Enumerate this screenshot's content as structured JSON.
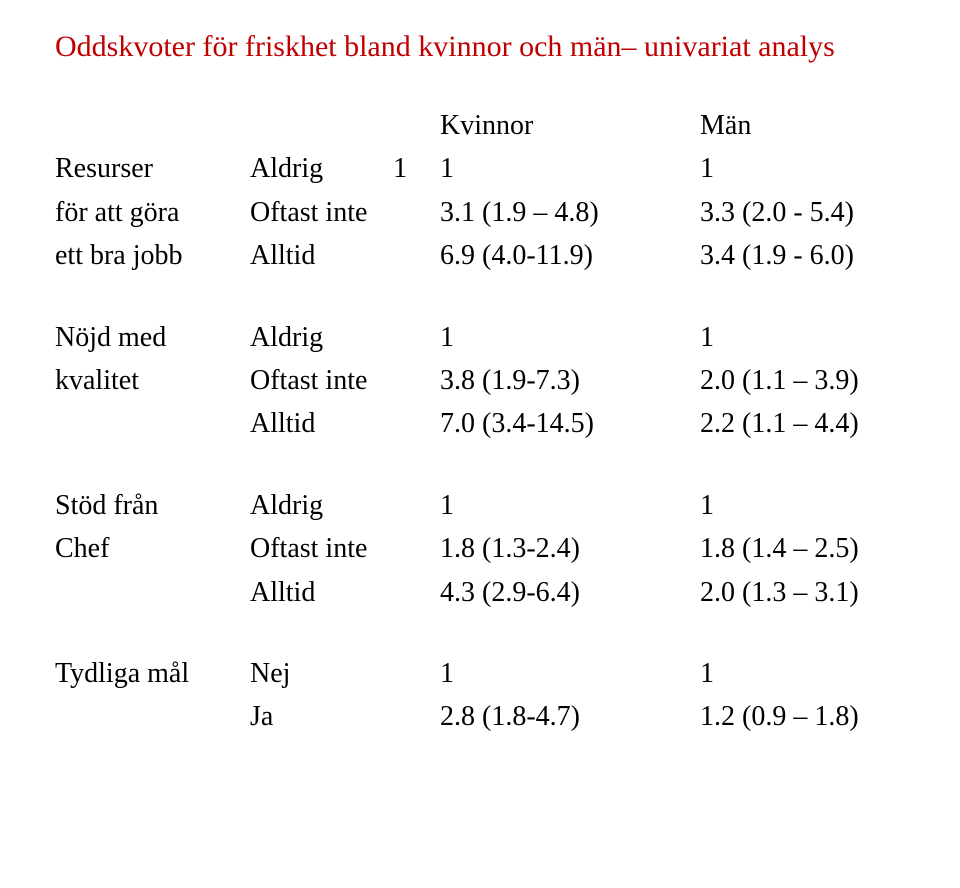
{
  "title": "Oddskvoter för friskhet bland kvinnor och män– univariat analys",
  "title_color": "#c00000",
  "header": {
    "kvinnor": "Kvinnor",
    "man": "Män"
  },
  "groups": [
    {
      "label_lines": [
        "Resurser",
        "för att göra",
        "ett  bra jobb"
      ],
      "rows": [
        {
          "level": "Aldrig",
          "kvinnor": "1",
          "kvinnor_prefix": "1",
          "man": "1"
        },
        {
          "level": "Oftast inte",
          "kvinnor": "3.1 (1.9 – 4.8)",
          "man": "3.3 (2.0 - 5.4)"
        },
        {
          "level": "Alltid",
          "kvinnor": "6.9 (4.0-11.9)",
          "man": "3.4 (1.9 - 6.0)"
        }
      ]
    },
    {
      "label_lines": [
        "Nöjd med",
        "kvalitet",
        ""
      ],
      "rows": [
        {
          "level": "Aldrig",
          "kvinnor": "1",
          "man": "1"
        },
        {
          "level": "Oftast inte",
          "kvinnor": "3.8 (1.9-7.3)",
          "man": "2.0 (1.1 – 3.9)"
        },
        {
          "level": "Alltid",
          "kvinnor": "7.0 (3.4-14.5)",
          "man": "2.2 (1.1 – 4.4)"
        }
      ]
    },
    {
      "label_lines": [
        "Stöd från",
        "Chef",
        ""
      ],
      "rows": [
        {
          "level": "Aldrig",
          "kvinnor": "1",
          "man": "1"
        },
        {
          "level": "Oftast inte",
          "kvinnor": "1.8 (1.3-2.4)",
          "man": "1.8 (1.4 – 2.5)"
        },
        {
          "level": "Alltid",
          "kvinnor": "4.3 (2.9-6.4)",
          "man": "2.0 (1.3 – 3.1)"
        }
      ]
    },
    {
      "label_lines": [
        "Tydliga mål",
        ""
      ],
      "rows": [
        {
          "level": "Nej",
          "kvinnor": "1",
          "man": "1"
        },
        {
          "level": "Ja",
          "kvinnor": "2.8 (1.8-4.7)",
          "man": "1.2 (0.9 – 1.8)"
        }
      ]
    }
  ]
}
